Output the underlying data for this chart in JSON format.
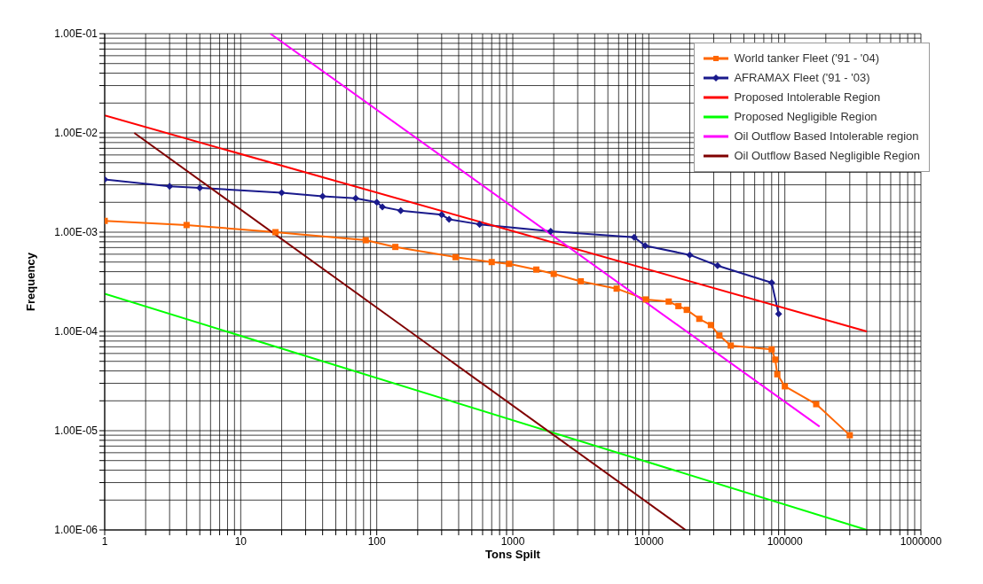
{
  "chart_data": {
    "type": "line",
    "xlabel": "Tons Spilt",
    "ylabel": "Frequency",
    "log": "xy",
    "grid": true,
    "legend": "top right",
    "xlim": [
      1,
      1000000
    ],
    "ylim": [
      1e-06,
      0.1
    ],
    "xticks": [
      1,
      {
        "value": 2,
        "label": null
      },
      {
        "value": 3,
        "label": null
      },
      {
        "value": 4,
        "label": null
      },
      {
        "value": 5,
        "label": null
      },
      {
        "value": 6,
        "label": null
      },
      {
        "value": 7,
        "label": null
      },
      {
        "value": 8,
        "label": null
      },
      {
        "value": 9,
        "label": null
      },
      10,
      {
        "value": 20,
        "label": null
      },
      {
        "value": 30,
        "label": null
      },
      {
        "value": 40,
        "label": null
      },
      {
        "value": 50,
        "label": null
      },
      {
        "value": 60,
        "label": null
      },
      {
        "value": 70,
        "label": null
      },
      {
        "value": 80,
        "label": null
      },
      {
        "value": 90,
        "label": null
      },
      100,
      {
        "value": 200,
        "label": null
      },
      {
        "value": 300,
        "label": null
      },
      {
        "value": 400,
        "label": null
      },
      {
        "value": 500,
        "label": null
      },
      {
        "value": 600,
        "label": null
      },
      {
        "value": 700,
        "label": null
      },
      {
        "value": 800,
        "label": null
      },
      {
        "value": 900,
        "label": null
      },
      1000,
      {
        "value": 2000,
        "label": null
      },
      {
        "value": 3000,
        "label": null
      },
      {
        "value": 4000,
        "label": null
      },
      {
        "value": 5000,
        "label": null
      },
      {
        "value": 6000,
        "label": null
      },
      {
        "value": 7000,
        "label": null
      },
      {
        "value": 8000,
        "label": null
      },
      {
        "value": 9000,
        "label": null
      },
      10000,
      {
        "value": 20000,
        "label": null
      },
      {
        "value": 30000,
        "label": null
      },
      {
        "value": 40000,
        "label": null
      },
      {
        "value": 50000,
        "label": null
      },
      {
        "value": 60000,
        "label": null
      },
      {
        "value": 70000,
        "label": null
      },
      {
        "value": 80000,
        "label": null
      },
      {
        "value": 90000,
        "label": null
      },
      100000,
      {
        "value": 200000,
        "label": null
      },
      {
        "value": 300000,
        "label": null
      },
      {
        "value": 400000,
        "label": null
      },
      {
        "value": 500000,
        "label": null
      },
      {
        "value": 600000,
        "label": null
      },
      {
        "value": 700000,
        "label": null
      },
      {
        "value": 800000,
        "label": null
      },
      {
        "value": 900000,
        "label": null
      },
      1000000
    ],
    "yticks": [
      {
        "value": 1e-06,
        "label": "1.00E-06"
      },
      {
        "value": 2e-06,
        "label": null
      },
      {
        "value": 3e-06,
        "label": null
      },
      {
        "value": 4e-06,
        "label": null
      },
      {
        "value": 5e-06,
        "label": null
      },
      {
        "value": 6e-06,
        "label": null
      },
      {
        "value": 7e-06,
        "label": null
      },
      {
        "value": 8e-06,
        "label": null
      },
      {
        "value": 9e-06,
        "label": null
      },
      {
        "value": 1e-05,
        "label": "1.00E-05"
      },
      {
        "value": 2e-05,
        "label": null
      },
      {
        "value": 3e-05,
        "label": null
      },
      {
        "value": 4e-05,
        "label": null
      },
      {
        "value": 5e-05,
        "label": null
      },
      {
        "value": 6e-05,
        "label": null
      },
      {
        "value": 7e-05,
        "label": null
      },
      {
        "value": 8e-05,
        "label": null
      },
      {
        "value": 9e-05,
        "label": null
      },
      {
        "value": 0.0001,
        "label": "1.00E-04"
      },
      {
        "value": 0.0002,
        "label": null
      },
      {
        "value": 0.0003,
        "label": null
      },
      {
        "value": 0.0004,
        "label": null
      },
      {
        "value": 0.0005,
        "label": null
      },
      {
        "value": 0.0006,
        "label": null
      },
      {
        "value": 0.0007,
        "label": null
      },
      {
        "value": 0.0008,
        "label": null
      },
      {
        "value": 0.0009,
        "label": null
      },
      {
        "value": 0.001,
        "label": "1.00E-03"
      },
      {
        "value": 0.002,
        "label": null
      },
      {
        "value": 0.003,
        "label": null
      },
      {
        "value": 0.004,
        "label": null
      },
      {
        "value": 0.005,
        "label": null
      },
      {
        "value": 0.006,
        "label": null
      },
      {
        "value": 0.007,
        "label": null
      },
      {
        "value": 0.008,
        "label": null
      },
      {
        "value": 0.009,
        "label": null
      },
      {
        "value": 0.01,
        "label": "1.00E-02"
      },
      {
        "value": 0.02,
        "label": null
      },
      {
        "value": 0.03,
        "label": null
      },
      {
        "value": 0.04,
        "label": null
      },
      {
        "value": 0.05,
        "label": null
      },
      {
        "value": 0.06,
        "label": null
      },
      {
        "value": 0.07,
        "label": null
      },
      {
        "value": 0.08,
        "label": null
      },
      {
        "value": 0.09,
        "label": null
      },
      {
        "value": 0.1,
        "label": "1.00E-01"
      }
    ],
    "series": [
      {
        "name": "World tanker Fleet ('91 - '04)",
        "color": "#ff6600",
        "marker": "square",
        "x": [
          1,
          4,
          18,
          83,
          137,
          380,
          700,
          940,
          1490,
          2000,
          3160,
          5800,
          9500,
          14000,
          16500,
          19000,
          23500,
          28600,
          33000,
          40000,
          80000,
          85000,
          88000,
          100000,
          170000,
          300000
        ],
        "values": [
          0.0013,
          0.00118,
          0.001,
          0.00083,
          0.00071,
          0.00056,
          0.0005,
          0.00048,
          0.00042,
          0.00038,
          0.00032,
          0.00027,
          0.00021,
          0.0002,
          0.00018,
          0.000165,
          0.000134,
          0.000116,
          9.1e-05,
          7.2e-05,
          6.6e-05,
          5.2e-05,
          3.7e-05,
          2.8e-05,
          1.85e-05,
          9e-06
        ]
      },
      {
        "name": "AFRAMAX Fleet ('91 - '03)",
        "color": "#1a1a8c",
        "marker": "diamond",
        "x": [
          1,
          3,
          5,
          20,
          40,
          70,
          100,
          110,
          150,
          300,
          340,
          570,
          1900,
          7800,
          9400,
          20000,
          32000,
          80000,
          90000
        ],
        "values": [
          0.0034,
          0.0029,
          0.0028,
          0.0025,
          0.0023,
          0.0022,
          0.002,
          0.0018,
          0.00165,
          0.0015,
          0.00135,
          0.0012,
          0.00102,
          0.00089,
          0.00073,
          0.00059,
          0.00046,
          0.00031,
          0.00015
        ]
      },
      {
        "name": "Proposed Intolerable Region",
        "color": "#ff0000",
        "marker": "none",
        "x": [
          1,
          400000
        ],
        "values": [
          0.015,
          0.0001
        ]
      },
      {
        "name": "Proposed Negligible Region",
        "color": "#00ff00",
        "marker": "none",
        "x": [
          1,
          400000
        ],
        "values": [
          0.00024,
          1e-06
        ]
      },
      {
        "name": "Oil Outflow Based Intolerable region",
        "color": "#ff00ff",
        "marker": "none",
        "x": [
          16.5,
          180000
        ],
        "values": [
          0.1,
          1.1e-05
        ]
      },
      {
        "name": "Oil Outflow Based Negligible Region",
        "color": "#800000",
        "marker": "none",
        "x": [
          1.65,
          18600
        ],
        "values": [
          0.01,
          1e-06
        ]
      }
    ]
  }
}
